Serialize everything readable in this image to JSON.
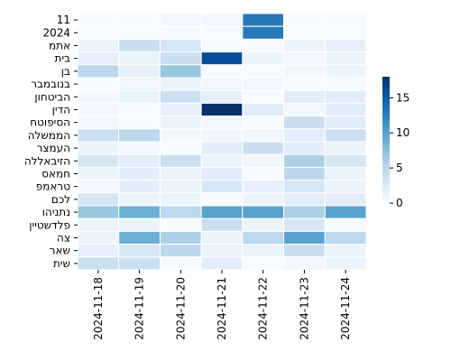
{
  "chart_data": {
    "type": "heatmap",
    "title": "",
    "xlabel": "",
    "ylabel": "",
    "x": [
      "2024-11-18",
      "2024-11-19",
      "2024-11-20",
      "2024-11-21",
      "2024-11-22",
      "2024-11-23",
      "2024-11-24"
    ],
    "y": [
      "11",
      "2024",
      "אתמ",
      "בית",
      "בן",
      "בנובמבר",
      "הביטחון",
      "הדין",
      "הסיפוטח",
      "הממשלה",
      "העמצר",
      "הזיבאללה",
      "חמאס",
      "טראמפ",
      "לכם",
      "נתניהו",
      "פלדשטיין",
      "צה",
      "שאר",
      "שית"
    ],
    "values": [
      [
        0,
        0,
        0.5,
        0.5,
        13,
        0,
        0
      ],
      [
        0,
        0,
        0,
        0,
        13,
        0,
        0
      ],
      [
        1,
        4,
        3,
        0,
        0,
        1,
        1.5
      ],
      [
        1.5,
        1,
        4,
        16,
        1,
        0.5,
        1
      ],
      [
        5,
        1.5,
        7,
        0,
        0,
        0.5,
        1
      ],
      [
        0,
        0.5,
        1,
        0.5,
        0.5,
        0,
        0
      ],
      [
        0.5,
        1,
        4,
        1.5,
        0,
        2,
        2
      ],
      [
        0.5,
        0,
        1.5,
        18,
        2,
        0.5,
        2
      ],
      [
        0.5,
        0,
        1,
        0.5,
        0,
        4,
        2
      ],
      [
        4,
        5,
        0.5,
        0.5,
        0.5,
        2,
        4
      ],
      [
        1,
        0.5,
        0,
        2,
        4,
        2,
        1
      ],
      [
        3,
        2,
        4,
        1,
        0.5,
        6,
        3
      ],
      [
        1,
        2,
        1,
        2,
        0,
        5,
        1
      ],
      [
        0.5,
        2,
        1,
        3,
        1.5,
        3,
        1
      ],
      [
        3,
        1,
        1,
        0,
        1,
        2,
        2
      ],
      [
        7,
        9,
        5,
        10,
        10,
        6,
        10
      ],
      [
        1,
        1,
        0,
        4,
        1,
        3,
        0
      ],
      [
        1,
        9,
        6,
        1,
        5,
        10,
        5
      ],
      [
        1.5,
        3,
        5,
        1,
        1,
        4,
        1
      ],
      [
        4,
        4,
        0,
        2,
        0,
        0.5,
        1
      ]
    ],
    "colorbar": {
      "min": 0,
      "max": 18,
      "ticks": [
        0,
        5,
        10,
        15
      ]
    },
    "colormap": {
      "low": "#f7fbff",
      "high": "#08306b"
    },
    "grid": true,
    "legend": "right"
  }
}
